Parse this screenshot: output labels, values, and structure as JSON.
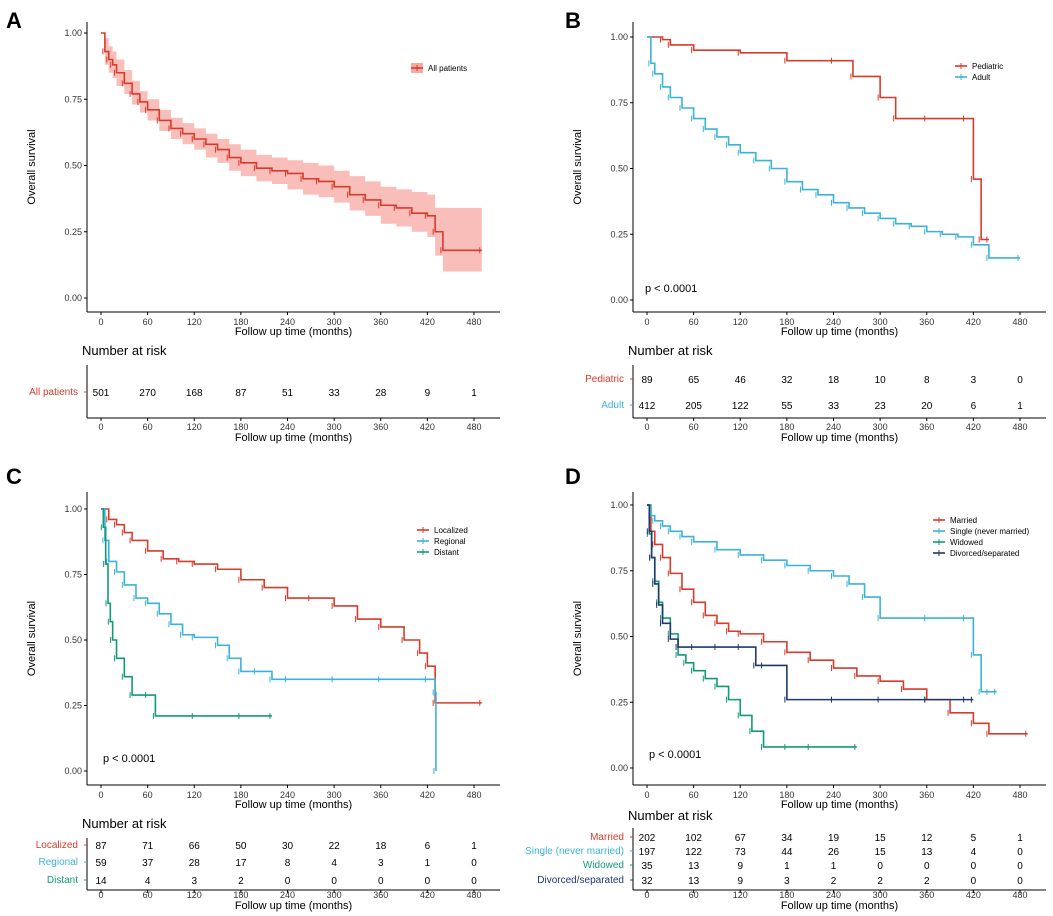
{
  "chart_data": [
    {
      "panel": "A",
      "type": "line",
      "subtype": "kaplan-meier",
      "xlabel": "Follow up time (months)",
      "ylabel": "Overall survival",
      "xticks": [
        0,
        60,
        120,
        180,
        240,
        300,
        360,
        420,
        480
      ],
      "yticks": [
        0.0,
        0.25,
        0.5,
        0.75,
        1.0
      ],
      "ytick_labels": [
        "0.00",
        "0.25",
        "0.50",
        "0.75",
        "1.00"
      ],
      "xlim": [
        0,
        480
      ],
      "ylim": [
        0,
        1
      ],
      "legend_position": "top-right",
      "confidence_band": true,
      "p_value": null,
      "series": [
        {
          "name": "All patients",
          "color": "#d73b2c",
          "band_color": "#f7a8a1",
          "x": [
            0,
            5,
            10,
            15,
            20,
            30,
            40,
            50,
            60,
            75,
            90,
            105,
            120,
            135,
            150,
            165,
            180,
            200,
            220,
            240,
            260,
            280,
            300,
            320,
            340,
            360,
            380,
            400,
            420,
            430,
            440,
            490
          ],
          "y": [
            1.0,
            0.93,
            0.9,
            0.88,
            0.85,
            0.81,
            0.77,
            0.74,
            0.71,
            0.67,
            0.64,
            0.62,
            0.6,
            0.58,
            0.56,
            0.53,
            0.51,
            0.49,
            0.48,
            0.47,
            0.45,
            0.44,
            0.42,
            0.39,
            0.37,
            0.35,
            0.34,
            0.32,
            0.31,
            0.25,
            0.18,
            0.18
          ],
          "lower": [
            1.0,
            0.88,
            0.85,
            0.83,
            0.8,
            0.77,
            0.73,
            0.7,
            0.67,
            0.63,
            0.6,
            0.58,
            0.56,
            0.53,
            0.51,
            0.48,
            0.46,
            0.44,
            0.43,
            0.41,
            0.39,
            0.38,
            0.36,
            0.33,
            0.31,
            0.28,
            0.27,
            0.25,
            0.23,
            0.16,
            0.1,
            0.1
          ],
          "upper": [
            1.0,
            0.98,
            0.95,
            0.93,
            0.9,
            0.86,
            0.82,
            0.78,
            0.75,
            0.71,
            0.68,
            0.66,
            0.64,
            0.62,
            0.6,
            0.58,
            0.56,
            0.54,
            0.53,
            0.52,
            0.51,
            0.5,
            0.48,
            0.46,
            0.44,
            0.42,
            0.41,
            0.4,
            0.39,
            0.34,
            0.34,
            0.34
          ]
        }
      ],
      "risk_table": {
        "title": "Number at risk",
        "xlabel": "Follow up time (months)",
        "rows": [
          {
            "label": "All patients",
            "color": "#d73b2c",
            "values": [
              501,
              270,
              168,
              87,
              51,
              33,
              28,
              9,
              1
            ]
          }
        ]
      }
    },
    {
      "panel": "B",
      "type": "line",
      "subtype": "kaplan-meier",
      "xlabel": "Follow up time (months)",
      "ylabel": "Overall survival",
      "xticks": [
        0,
        60,
        120,
        180,
        240,
        300,
        360,
        420,
        480
      ],
      "yticks": [
        0.0,
        0.25,
        0.5,
        0.75,
        1.0
      ],
      "ytick_labels": [
        "0.00",
        "0.25",
        "0.50",
        "0.75",
        "1.00"
      ],
      "xlim": [
        0,
        480
      ],
      "ylim": [
        0,
        1
      ],
      "legend_position": "top-right",
      "confidence_band": false,
      "p_value": "p < 0.0001",
      "series": [
        {
          "name": "Pediatric",
          "color": "#d73b2c",
          "x": [
            0,
            20,
            30,
            60,
            120,
            180,
            240,
            265,
            300,
            320,
            360,
            410,
            420,
            430,
            440
          ],
          "y": [
            1.0,
            0.99,
            0.97,
            0.95,
            0.94,
            0.91,
            0.91,
            0.85,
            0.77,
            0.69,
            0.69,
            0.69,
            0.46,
            0.23,
            0.23
          ]
        },
        {
          "name": "Adult",
          "color": "#3bb3d8",
          "x": [
            0,
            5,
            10,
            20,
            30,
            45,
            60,
            75,
            90,
            105,
            120,
            140,
            160,
            180,
            200,
            220,
            240,
            260,
            280,
            300,
            320,
            340,
            360,
            380,
            400,
            420,
            440,
            480
          ],
          "y": [
            1.0,
            0.9,
            0.86,
            0.81,
            0.77,
            0.73,
            0.69,
            0.65,
            0.62,
            0.59,
            0.56,
            0.53,
            0.5,
            0.45,
            0.42,
            0.4,
            0.37,
            0.35,
            0.33,
            0.31,
            0.29,
            0.28,
            0.26,
            0.25,
            0.24,
            0.21,
            0.16,
            0.16
          ]
        }
      ],
      "risk_table": {
        "title": "Number at risk",
        "xlabel": "Follow up time (months)",
        "rows": [
          {
            "label": "Pediatric",
            "color": "#d73b2c",
            "values": [
              89,
              65,
              46,
              32,
              18,
              10,
              8,
              3,
              0
            ]
          },
          {
            "label": "Adult",
            "color": "#3bb3d8",
            "values": [
              412,
              205,
              122,
              55,
              33,
              23,
              20,
              6,
              1
            ]
          }
        ]
      }
    },
    {
      "panel": "C",
      "type": "line",
      "subtype": "kaplan-meier",
      "xlabel": "Follow up time (months)",
      "ylabel": "Overall survival",
      "xticks": [
        0,
        60,
        120,
        180,
        240,
        300,
        360,
        420,
        480
      ],
      "yticks": [
        0.0,
        0.25,
        0.5,
        0.75,
        1.0
      ],
      "ytick_labels": [
        "0.00",
        "0.25",
        "0.50",
        "0.75",
        "1.00"
      ],
      "xlim": [
        0,
        480
      ],
      "ylim": [
        0,
        1
      ],
      "legend_position": "top-right",
      "confidence_band": false,
      "p_value": "p < 0.0001",
      "series": [
        {
          "name": "Localized",
          "color": "#d73b2c",
          "x": [
            0,
            10,
            20,
            30,
            40,
            60,
            80,
            100,
            120,
            150,
            180,
            210,
            240,
            270,
            300,
            330,
            360,
            390,
            410,
            420,
            430,
            490
          ],
          "y": [
            1.0,
            0.96,
            0.94,
            0.91,
            0.88,
            0.84,
            0.81,
            0.8,
            0.79,
            0.77,
            0.73,
            0.7,
            0.66,
            0.66,
            0.63,
            0.58,
            0.55,
            0.5,
            0.45,
            0.4,
            0.26,
            0.26
          ]
        },
        {
          "name": "Regional",
          "color": "#3bb3d8",
          "x": [
            0,
            5,
            10,
            20,
            30,
            45,
            60,
            75,
            90,
            105,
            120,
            150,
            165,
            180,
            200,
            220,
            240,
            300,
            360,
            420,
            430,
            431
          ],
          "y": [
            1.0,
            0.88,
            0.8,
            0.76,
            0.71,
            0.66,
            0.64,
            0.6,
            0.56,
            0.52,
            0.51,
            0.48,
            0.43,
            0.38,
            0.38,
            0.35,
            0.35,
            0.35,
            0.35,
            0.35,
            0.3,
            0.0
          ]
        },
        {
          "name": "Distant",
          "color": "#129a78",
          "x": [
            0,
            3,
            6,
            9,
            12,
            15,
            20,
            30,
            40,
            60,
            70,
            120,
            180,
            220
          ],
          "y": [
            1.0,
            0.93,
            0.79,
            0.64,
            0.57,
            0.5,
            0.43,
            0.36,
            0.29,
            0.29,
            0.21,
            0.21,
            0.21,
            0.21
          ]
        }
      ],
      "risk_table": {
        "title": "Number at risk",
        "xlabel": "Follow up time (months)",
        "rows": [
          {
            "label": "Localized",
            "color": "#d73b2c",
            "values": [
              87,
              71,
              66,
              50,
              30,
              22,
              18,
              6,
              1
            ]
          },
          {
            "label": "Regional",
            "color": "#3bb3d8",
            "values": [
              59,
              37,
              28,
              17,
              8,
              4,
              3,
              1,
              0
            ]
          },
          {
            "label": "Distant",
            "color": "#129a78",
            "values": [
              14,
              4,
              3,
              2,
              0,
              0,
              0,
              0,
              0
            ]
          }
        ]
      }
    },
    {
      "panel": "D",
      "type": "line",
      "subtype": "kaplan-meier",
      "xlabel": "Follow up time (months)",
      "ylabel": "Overall survival",
      "xticks": [
        0,
        60,
        120,
        180,
        240,
        300,
        360,
        420,
        480
      ],
      "yticks": [
        0.0,
        0.25,
        0.5,
        0.75,
        1.0
      ],
      "ytick_labels": [
        "0.00",
        "0.25",
        "0.50",
        "0.75",
        "1.00"
      ],
      "xlim": [
        0,
        480
      ],
      "ylim": [
        0,
        1
      ],
      "legend_position": "top-right",
      "confidence_band": false,
      "p_value": "p < 0.0001",
      "series": [
        {
          "name": "Married",
          "color": "#d73b2c",
          "x": [
            0,
            5,
            10,
            20,
            30,
            45,
            60,
            75,
            90,
            105,
            120,
            150,
            180,
            210,
            240,
            270,
            300,
            330,
            360,
            390,
            420,
            440,
            490
          ],
          "y": [
            1.0,
            0.9,
            0.85,
            0.8,
            0.74,
            0.68,
            0.63,
            0.58,
            0.55,
            0.52,
            0.51,
            0.48,
            0.44,
            0.41,
            0.38,
            0.35,
            0.33,
            0.3,
            0.26,
            0.21,
            0.17,
            0.13,
            0.13
          ]
        },
        {
          "name": "Single (never married)",
          "color": "#3bb3d8",
          "x": [
            0,
            5,
            10,
            20,
            30,
            45,
            60,
            90,
            120,
            150,
            180,
            210,
            240,
            260,
            280,
            300,
            360,
            410,
            420,
            430,
            440,
            450
          ],
          "y": [
            1.0,
            0.96,
            0.94,
            0.92,
            0.9,
            0.88,
            0.86,
            0.83,
            0.81,
            0.79,
            0.77,
            0.75,
            0.73,
            0.7,
            0.65,
            0.57,
            0.57,
            0.57,
            0.43,
            0.29,
            0.29,
            0.29
          ]
        },
        {
          "name": "Widowed",
          "color": "#129a78",
          "x": [
            0,
            3,
            6,
            10,
            15,
            20,
            30,
            40,
            50,
            60,
            75,
            90,
            105,
            120,
            135,
            150,
            180,
            210,
            270
          ],
          "y": [
            1.0,
            0.89,
            0.8,
            0.71,
            0.63,
            0.57,
            0.51,
            0.43,
            0.4,
            0.37,
            0.34,
            0.31,
            0.26,
            0.2,
            0.14,
            0.08,
            0.08,
            0.08,
            0.08
          ]
        },
        {
          "name": "Divorced/separated",
          "color": "#1d3a6b",
          "x": [
            0,
            3,
            6,
            10,
            15,
            20,
            30,
            40,
            60,
            90,
            120,
            140,
            150,
            180,
            240,
            300,
            360,
            410,
            420
          ],
          "y": [
            1.0,
            0.9,
            0.8,
            0.7,
            0.62,
            0.55,
            0.49,
            0.46,
            0.46,
            0.46,
            0.46,
            0.39,
            0.39,
            0.26,
            0.26,
            0.26,
            0.26,
            0.26,
            0.26
          ]
        }
      ],
      "risk_table": {
        "title": "Number at risk",
        "xlabel": "Follow up time (months)",
        "rows": [
          {
            "label": "Married",
            "color": "#d73b2c",
            "values": [
              202,
              102,
              67,
              34,
              19,
              15,
              12,
              5,
              1
            ]
          },
          {
            "label": "Single (never married)",
            "color": "#3bb3d8",
            "values": [
              197,
              122,
              73,
              44,
              26,
              15,
              13,
              4,
              0
            ]
          },
          {
            "label": "Widowed",
            "color": "#129a78",
            "values": [
              35,
              13,
              9,
              1,
              1,
              0,
              0,
              0,
              0
            ]
          },
          {
            "label": "Divorced/separated",
            "color": "#1d3a6b",
            "values": [
              32,
              13,
              9,
              3,
              2,
              2,
              2,
              0,
              0
            ]
          }
        ]
      }
    }
  ]
}
